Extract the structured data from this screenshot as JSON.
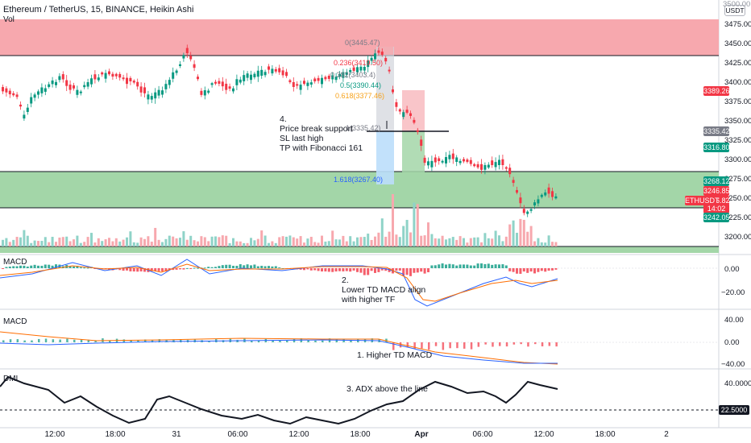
{
  "header": {
    "title": "Ethereum / TetherUS, 15, BINANCE, Heikin Ashi",
    "volume_label": "Vol"
  },
  "currency_button": "USDT",
  "price_axis": {
    "ticks": [
      "3475.00",
      "3450.00",
      "3425.00",
      "3400.00",
      "3375.00",
      "3350.00",
      "3325.00",
      "3300.00",
      "3275.00",
      "3250.00",
      "3225.00",
      "3200.00"
    ],
    "top_partial": "3500.00"
  },
  "price_tags": [
    {
      "value": "3389.26",
      "color": "#f23645"
    },
    {
      "value": "3335.42",
      "color": "#787b86"
    },
    {
      "value": "3316.80",
      "color": "#089981"
    },
    {
      "value": "3268.12",
      "color": "#089981"
    },
    {
      "value": "3246.85",
      "color": "#f23645"
    },
    {
      "value": "3246.82",
      "color": "#f23645"
    },
    {
      "value": "14:02",
      "color": "#f23645"
    },
    {
      "value": "3242.05",
      "color": "#089981"
    }
  ],
  "symbol_tag": "ETHUSDT",
  "fibonacci": [
    {
      "label": "0(3445.47)",
      "color": "#787b86"
    },
    {
      "label": "0.236(3419.50)",
      "color": "#f23645"
    },
    {
      "label": "0.382(3403.4)",
      "color": "#787b86"
    },
    {
      "label": "0.5(3390.44)",
      "color": "#089981"
    },
    {
      "label": "0.618(3377.46)",
      "color": "#f7a21b"
    },
    {
      "label": "1(3335.42)",
      "color": "#787b86"
    },
    {
      "label": "1.618(3267.40)",
      "color": "#2962ff"
    }
  ],
  "annotations": {
    "note4": [
      "4.",
      "Price break support",
      "SL last high",
      "TP with Fibonacci 161"
    ],
    "note2": [
      "2.",
      "Lower TD MACD align",
      "with higher TF"
    ],
    "note1": "1. Higher TD MACD",
    "note3": "3. ADX above the line"
  },
  "panes": [
    {
      "title": "MACD",
      "ticks": [
        "0.00",
        "−20.00"
      ]
    },
    {
      "title": "MACD",
      "ticks": [
        "40.00",
        "0.00",
        "−40.00"
      ]
    },
    {
      "title": "DMI",
      "ticks": [
        "40.0000",
        "22.5000"
      ]
    }
  ],
  "time_axis": [
    "12:00",
    "18:00",
    "31",
    "06:00",
    "12:00",
    "18:00",
    "Apr",
    "06:00",
    "12:00",
    "18:00",
    "2"
  ],
  "colors": {
    "up": "#089981",
    "down": "#f23645",
    "resistance": "#f7a8ae",
    "support": "#a3d6a8"
  }
}
